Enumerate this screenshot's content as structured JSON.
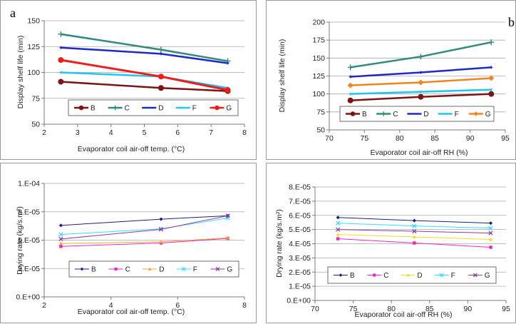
{
  "panel_letters": {
    "a": "a",
    "b": "b"
  },
  "chart_data": [
    {
      "id": "tl",
      "type": "line",
      "title": "",
      "xlabel": "Evaporator coil air-off temp. (°C)",
      "ylabel": "Display shelf life (min)",
      "xlim": [
        2,
        8
      ],
      "ylim": [
        50,
        150
      ],
      "x_ticks": [
        2,
        3,
        4,
        5,
        6,
        7,
        8
      ],
      "y_ticks": [
        50,
        75,
        100,
        125,
        150
      ],
      "y_tick_labels": [
        "50",
        "75",
        "100",
        "125",
        "150"
      ],
      "x_tick_labels": [
        "2",
        "3",
        "4",
        "5",
        "6",
        "7",
        "8"
      ],
      "grid": true,
      "legend_position": "bottom",
      "series": [
        {
          "name": "B",
          "color": "#7b1414",
          "marker": "circle",
          "width": 2.5,
          "x": [
            2.5,
            5.5,
            7.5
          ],
          "y": [
            91,
            85,
            82
          ]
        },
        {
          "name": "C",
          "color": "#2e8b7a",
          "marker": "plus",
          "width": 2.5,
          "x": [
            2.5,
            5.5,
            7.5
          ],
          "y": [
            137,
            122,
            111
          ]
        },
        {
          "name": "D",
          "color": "#1f28c8",
          "marker": "none",
          "width": 2.5,
          "x": [
            2.5,
            5.5,
            7.5
          ],
          "y": [
            124,
            118,
            109
          ]
        },
        {
          "name": "F",
          "color": "#22c4f0",
          "marker": "none",
          "width": 2.5,
          "x": [
            2.5,
            5.5,
            7.5
          ],
          "y": [
            100,
            96,
            85
          ]
        },
        {
          "name": "G",
          "color": "#ee1c1c",
          "marker": "circle",
          "width": 3,
          "x": [
            2.5,
            5.5,
            7.5
          ],
          "y": [
            112,
            96,
            83
          ]
        }
      ]
    },
    {
      "id": "tr",
      "type": "line",
      "title": "",
      "xlabel": "Evaporator coil air-off RH (%)",
      "ylabel": "Display shelf life (min)",
      "xlim": [
        70,
        95
      ],
      "ylim": [
        50,
        200
      ],
      "x_ticks": [
        70,
        75,
        80,
        85,
        90,
        95
      ],
      "y_ticks": [
        50,
        75,
        100,
        125,
        150,
        175,
        200
      ],
      "y_tick_labels": [
        "50",
        "75",
        "100",
        "125",
        "150",
        "175",
        "200"
      ],
      "x_tick_labels": [
        "70",
        "75",
        "80",
        "85",
        "90",
        "95"
      ],
      "grid": true,
      "legend_position": "bottom",
      "series": [
        {
          "name": "B",
          "color": "#7b1414",
          "marker": "circle",
          "width": 2.5,
          "x": [
            73,
            83,
            93
          ],
          "y": [
            91,
            96,
            100
          ]
        },
        {
          "name": "C",
          "color": "#2e8b7a",
          "marker": "plus",
          "width": 2.5,
          "x": [
            73,
            83,
            93
          ],
          "y": [
            137,
            152,
            172
          ]
        },
        {
          "name": "D",
          "color": "#1f28c8",
          "marker": "none",
          "width": 2.5,
          "x": [
            73,
            83,
            93
          ],
          "y": [
            124,
            130,
            137
          ]
        },
        {
          "name": "F",
          "color": "#22c4f0",
          "marker": "none",
          "width": 2.5,
          "x": [
            73,
            83,
            93
          ],
          "y": [
            100,
            103,
            106
          ]
        },
        {
          "name": "G",
          "color": "#f58220",
          "marker": "diamond",
          "width": 2.5,
          "x": [
            73,
            83,
            93
          ],
          "y": [
            112,
            116,
            122
          ]
        }
      ]
    },
    {
      "id": "bl",
      "type": "line",
      "title": "",
      "xlabel": "Evaporator coil air-off temp. (°C)",
      "ylabel": "Drying rate (kg/s.m²)",
      "xlim": [
        2,
        8
      ],
      "ylim": [
        0,
        0.0001
      ],
      "x_ticks": [
        2,
        4,
        6,
        8
      ],
      "y_ticks": [
        0,
        2.5e-05,
        5e-05,
        7.5e-05,
        0.0001
      ],
      "y_tick_labels": [
        "0.E+00",
        "3.E-05",
        "5.E-05",
        "8.E-05",
        "1.E-04"
      ],
      "x_tick_labels": [
        "2",
        "4",
        "6",
        "8"
      ],
      "grid": true,
      "legend_position": "bottom",
      "series": [
        {
          "name": "B",
          "color": "#1a1f80",
          "marker": "diamond",
          "width": 1,
          "x": [
            2.5,
            5.5,
            7.5
          ],
          "y": [
            6.3e-05,
            6.85e-05,
            7.15e-05
          ]
        },
        {
          "name": "C",
          "color": "#ee22cc",
          "marker": "square",
          "width": 1,
          "x": [
            2.5,
            5.5,
            7.5
          ],
          "y": [
            4.45e-05,
            4.75e-05,
            5.15e-05
          ]
        },
        {
          "name": "D",
          "color": "#f0a830",
          "marker": "triangle",
          "width": 1,
          "x": [
            2.5,
            5.5,
            7.5
          ],
          "y": [
            4.7e-05,
            4.85e-05,
            5.2e-05
          ]
        },
        {
          "name": "F",
          "color": "#33ddff",
          "marker": "cross",
          "width": 1,
          "x": [
            2.5,
            5.5,
            7.5
          ],
          "y": [
            5.5e-05,
            6e-05,
            6.95e-05
          ]
        },
        {
          "name": "G",
          "color": "#8e3aa0",
          "marker": "cross",
          "width": 1,
          "x": [
            2.5,
            5.5,
            7.5
          ],
          "y": [
            5.1e-05,
            5.95e-05,
            7.15e-05
          ]
        }
      ]
    },
    {
      "id": "br",
      "type": "line",
      "title": "",
      "xlabel": "Evaporator coil air-off RH (%)",
      "ylabel": "Drying rate (kg/s.m²)",
      "xlim": [
        70,
        95
      ],
      "ylim": [
        0,
        8e-05
      ],
      "x_ticks": [
        70,
        75,
        80,
        85,
        90,
        95
      ],
      "y_ticks": [
        0,
        1e-05,
        2e-05,
        3e-05,
        4e-05,
        5e-05,
        6e-05,
        7e-05,
        8e-05
      ],
      "y_tick_labels": [
        "0.E+00",
        "1.E-05",
        "2.E-05",
        "3.E-05",
        "4.E-05",
        "5.E-05",
        "6.E-05",
        "7.E-05",
        "8.E-05"
      ],
      "x_tick_labels": [
        "70",
        "75",
        "80",
        "85",
        "90",
        "95"
      ],
      "grid": true,
      "legend_position": "bottom",
      "series": [
        {
          "name": "B",
          "color": "#1a1f80",
          "marker": "diamond",
          "width": 1,
          "x": [
            73,
            83,
            93
          ],
          "y": [
            5.85e-05,
            5.63e-05,
            5.45e-05
          ]
        },
        {
          "name": "C",
          "color": "#ee22cc",
          "marker": "square",
          "width": 1,
          "x": [
            73,
            83,
            93
          ],
          "y": [
            4.35e-05,
            4.05e-05,
            3.75e-05
          ]
        },
        {
          "name": "D",
          "color": "#e8e020",
          "marker": "triangle",
          "width": 1,
          "x": [
            73,
            83,
            93
          ],
          "y": [
            4.65e-05,
            4.48e-05,
            4.3e-05
          ]
        },
        {
          "name": "F",
          "color": "#33ddff",
          "marker": "cross",
          "width": 1,
          "x": [
            73,
            83,
            93
          ],
          "y": [
            5.45e-05,
            5.25e-05,
            5.1e-05
          ]
        },
        {
          "name": "G",
          "color": "#8e3aa0",
          "marker": "cross",
          "width": 1,
          "x": [
            73,
            83,
            93
          ],
          "y": [
            5e-05,
            4.88e-05,
            4.75e-05
          ]
        }
      ]
    }
  ]
}
